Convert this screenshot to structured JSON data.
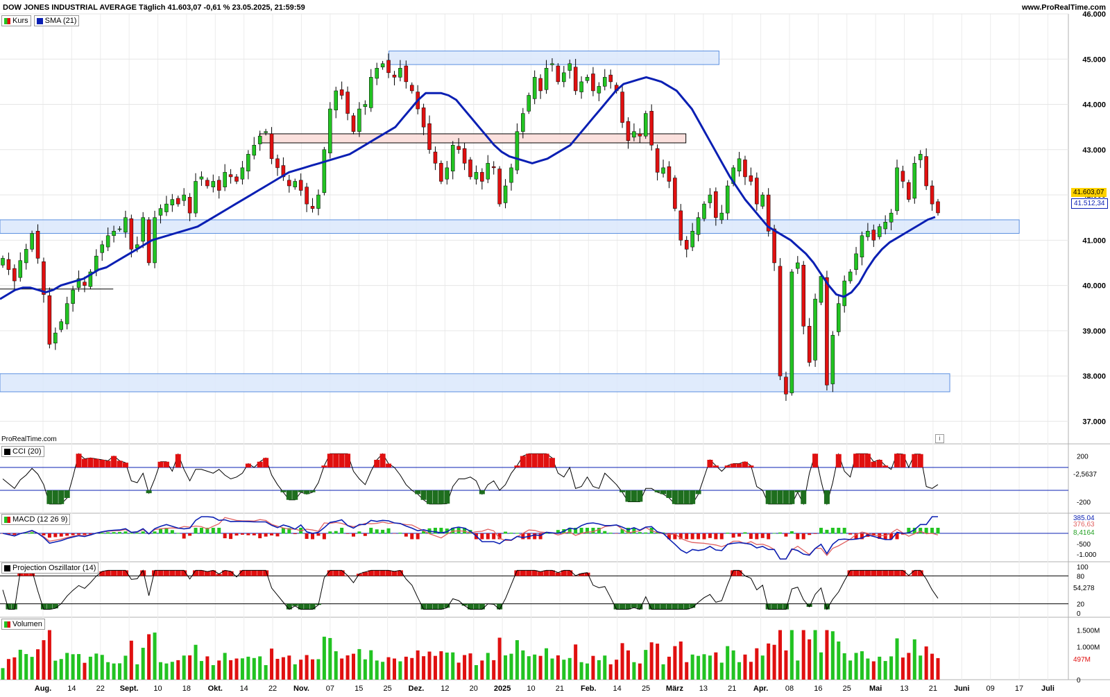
{
  "header": {
    "title": "DOW JONES INDUSTRIAL AVERAGE Täglich 41.603,07 -0,61 % 23.05.2025, 21:59:59",
    "site": "www.ProRealTime.com"
  },
  "watermark": "ProRealTime.com",
  "legend": {
    "price_label": "Kurs",
    "sma_label": "SMA (21)",
    "cci_label": "CCI (20)",
    "macd_label": "MACD (12 26 9)",
    "po_label": "Projection Oszillator (14)",
    "vol_label": "Volumen"
  },
  "badges": {
    "last_price": "41.603,07",
    "sma_value": "41.512,34",
    "cci_value": "-2,5637",
    "macd_value": "376,63",
    "macd_hist": "8,4164",
    "macd_top": "385,04",
    "po_value": "54,278",
    "vol_value": "497M"
  },
  "colors": {
    "up": "#22c322",
    "down": "#e01010",
    "sma": "#0a1fb3",
    "signal": "#e06060",
    "zone_blue_fill": "#dbe8fb",
    "zone_blue_border": "#5b8fe0",
    "zone_red_fill": "#fadad7",
    "cci_up": "#e01010",
    "cci_down": "#1e6e1e"
  },
  "chart_data": [
    {
      "type": "candlestick",
      "name": "price",
      "ylim": [
        36500,
        46000
      ],
      "yticks": [
        "37.000",
        "38.000",
        "39.000",
        "40.000",
        "41.000",
        "42.000",
        "43.000",
        "44.000",
        "45.000",
        "46.000"
      ],
      "x_labels": [
        "Aug.",
        "14",
        "22",
        "Sept.",
        "10",
        "18",
        "Okt.",
        "14",
        "22",
        "Nov.",
        "07",
        "15",
        "25",
        "Dez.",
        "12",
        "20",
        "2025",
        "10",
        "21",
        "Feb.",
        "14",
        "25",
        "März",
        "13",
        "21",
        "Apr.",
        "08",
        "16",
        "25",
        "Mai",
        "13",
        "21",
        "Juni",
        "09",
        "17",
        "Juli"
      ],
      "close_series": [
        40600,
        40350,
        40100,
        40550,
        40800,
        41150,
        40600,
        39800,
        38700,
        38950,
        39200,
        39600,
        39900,
        40150,
        40000,
        40300,
        40650,
        40900,
        41100,
        41200,
        41250,
        41500,
        40800,
        40900,
        41500,
        40500,
        41500,
        41700,
        41800,
        41900,
        41800,
        42000,
        41600,
        42300,
        42400,
        42200,
        42300,
        42100,
        42500,
        42400,
        42300,
        42600,
        42900,
        43100,
        43300,
        43400,
        42800,
        42600,
        42400,
        42200,
        42300,
        42100,
        41800,
        41700,
        42000,
        43000,
        43900,
        44300,
        44200,
        43800,
        43400,
        43900,
        44000,
        44600,
        44800,
        44900,
        44700,
        44600,
        44800,
        44500,
        44300,
        43900,
        43500,
        43000,
        42700,
        42300,
        42600,
        43100,
        43000,
        42700,
        42400,
        42500,
        42300,
        42700,
        42600,
        41800,
        42200,
        42600,
        43400,
        43800,
        44200,
        44600,
        44300,
        44800,
        44900,
        44500,
        44700,
        44900,
        44300,
        44500,
        44600,
        44300,
        44400,
        44600,
        44500,
        44300,
        43600,
        43200,
        43400,
        43300,
        43800,
        43100,
        42500,
        42600,
        42300,
        41700,
        41000,
        40800,
        41200,
        41500,
        41800,
        42000,
        41500,
        41600,
        42200,
        42600,
        42800,
        42400,
        42300,
        41800,
        42000,
        41200,
        40500,
        38000,
        37600,
        40300,
        40500,
        39100,
        38300,
        39700,
        40200,
        37800,
        38900,
        39600,
        40100,
        40300,
        40700,
        41100,
        41200,
        41000,
        41300,
        41400,
        41600,
        42600,
        42300,
        41900,
        42700,
        42900,
        42200,
        41800,
        41603
      ],
      "sma_series": [
        39700,
        39800,
        39900,
        39950,
        39950,
        39900,
        39850,
        39900,
        40000,
        40050,
        40100,
        40150,
        40250,
        40350,
        40400,
        40500,
        40600,
        40700,
        40800,
        40900,
        41000,
        41050,
        41100,
        41150,
        41200,
        41250,
        41300,
        41400,
        41500,
        41600,
        41700,
        41800,
        41900,
        42000,
        42100,
        42200,
        42300,
        42400,
        42500,
        42550,
        42600,
        42650,
        42700,
        42750,
        42800,
        42850,
        42900,
        43000,
        43100,
        43200,
        43300,
        43400,
        43500,
        43700,
        43900,
        44100,
        44250,
        44250,
        44250,
        44200,
        44100,
        43900,
        43700,
        43500,
        43300,
        43100,
        42950,
        42850,
        42800,
        42750,
        42700,
        42750,
        42800,
        42900,
        43000,
        43100,
        43300,
        43500,
        43700,
        43900,
        44100,
        44300,
        44450,
        44500,
        44550,
        44600,
        44550,
        44500,
        44400,
        44300,
        44100,
        43900,
        43600,
        43300,
        43000,
        42700,
        42400,
        42150,
        41900,
        41700,
        41500,
        41300,
        41200,
        41100,
        41000,
        40850,
        40700,
        40500,
        40250,
        40000,
        39800,
        39750,
        39850,
        40050,
        40350,
        40600,
        40800,
        40950,
        41050,
        41150,
        41250,
        41350,
        41450,
        41512
      ],
      "zones": [
        {
          "kind": "blue",
          "y_low": 44880,
          "y_high": 45180,
          "x_from_frac": 0.364,
          "x_to_frac": 0.673
        },
        {
          "kind": "red",
          "y_low": 43150,
          "y_high": 43350,
          "x_from_frac": 0.243,
          "x_to_frac": 0.642
        },
        {
          "kind": "blue",
          "y_low": 41150,
          "y_high": 41450,
          "x_from_frac": 0.0,
          "x_to_frac": 0.954
        },
        {
          "kind": "blue",
          "y_low": 37650,
          "y_high": 38050,
          "x_from_frac": 0.0,
          "x_to_frac": 0.889
        }
      ],
      "hline": {
        "y": 39920,
        "x_from_frac": 0.0,
        "x_to_frac": 0.106
      }
    },
    {
      "type": "line",
      "name": "CCI (20)",
      "ylim": [
        -300,
        300
      ],
      "yticks": [
        "200",
        "-200"
      ],
      "bands": [
        100,
        -100
      ]
    },
    {
      "type": "line",
      "name": "MACD (12 26 9)",
      "yticks": [
        "-500",
        "-1.000"
      ]
    },
    {
      "type": "line",
      "name": "Projection Oszillator (14)",
      "ylim": [
        0,
        100
      ],
      "yticks": [
        "100",
        "80",
        "20",
        "0"
      ],
      "bands": [
        80,
        20
      ]
    },
    {
      "type": "bar",
      "name": "Volumen",
      "yticks": [
        "1.500M",
        "1.000M",
        "0"
      ]
    }
  ]
}
